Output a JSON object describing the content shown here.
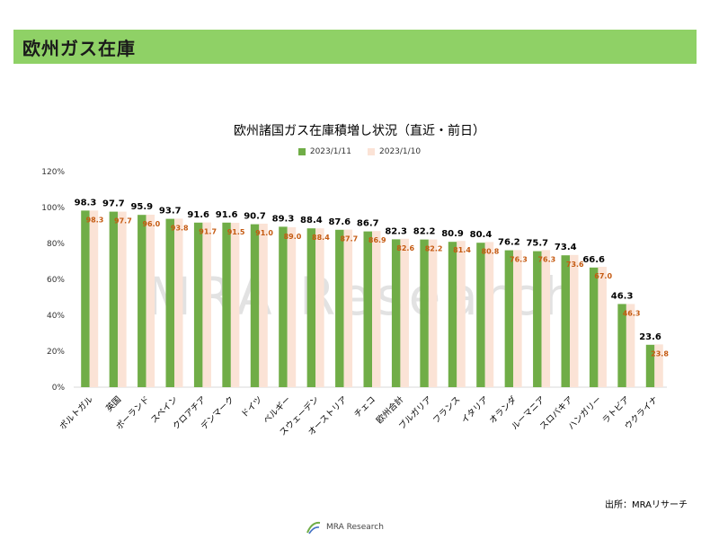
{
  "page": {
    "title": "欧州ガス在庫"
  },
  "colors": {
    "header": "#8fd166",
    "series1": "#70ad47",
    "series2": "#fbe3d6",
    "label2": "#c55a11",
    "watermark": "#bfbfbf"
  },
  "watermark": "MRA Research",
  "source": "出所：MRAリサーチ",
  "footer": {
    "text": "MRA Research",
    "logo_icon": "mra-logo-icon"
  },
  "chart_data": {
    "type": "bar",
    "title": "欧州諸国ガス在庫積増し状況（直近・前日）",
    "categories": [
      "ポルトガル",
      "英国",
      "ポーランド",
      "スペイン",
      "クロアチア",
      "デンマーク",
      "ドイツ",
      "ベルギー",
      "スウェーデン",
      "オーストリア",
      "チェコ",
      "欧州合計",
      "ブルガリア",
      "フランス",
      "イタリア",
      "オランダ",
      "ルーマニア",
      "スロバキア",
      "ハンガリー",
      "ラトビア",
      "ウクライナ"
    ],
    "series": [
      {
        "name": "2023/1/11",
        "values": [
          98.3,
          97.7,
          95.9,
          93.7,
          91.6,
          91.6,
          90.7,
          89.3,
          88.4,
          87.6,
          86.7,
          82.3,
          82.2,
          80.9,
          80.4,
          76.2,
          75.7,
          73.4,
          66.6,
          46.3,
          23.6
        ]
      },
      {
        "name": "2023/1/10",
        "values": [
          98.3,
          97.7,
          96.0,
          93.8,
          91.7,
          91.5,
          91.0,
          89.0,
          88.4,
          87.7,
          86.9,
          82.6,
          82.2,
          81.4,
          80.8,
          76.3,
          76.3,
          73.6,
          67.0,
          46.3,
          23.8
        ]
      }
    ],
    "ylim": [
      0,
      120
    ],
    "yticks": [
      "0%",
      "20%",
      "40%",
      "60%",
      "80%",
      "100%",
      "120%"
    ],
    "legend": "top-center",
    "grid": false
  }
}
